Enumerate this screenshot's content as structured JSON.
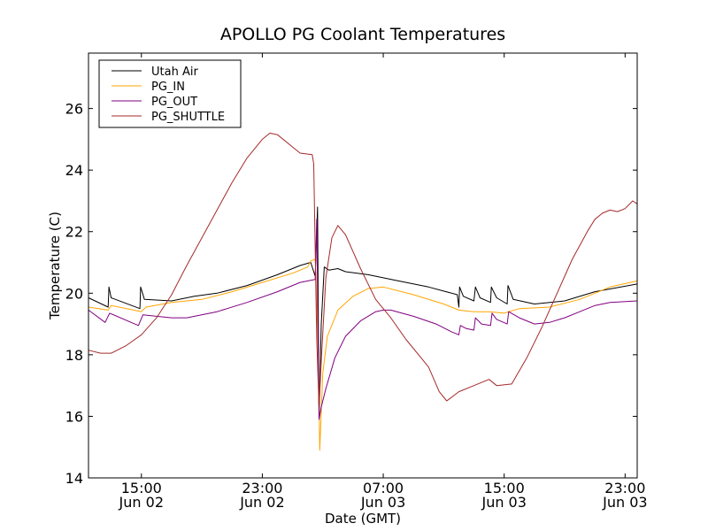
{
  "chart_data": {
    "type": "line",
    "title": "APOLLO PG Coolant Temperatures",
    "xlabel": "Date (GMT)",
    "ylabel": "Temperature (C)",
    "xlim": [
      11.5,
      47.8
    ],
    "ylim": [
      14,
      27.8
    ],
    "grid": false,
    "legend_position": "top-left",
    "x_unit": "hours since 00:00 Jun 02",
    "x_ticks": [
      {
        "x": 15,
        "line1": "15:00",
        "line2": "Jun 02"
      },
      {
        "x": 23,
        "line1": "23:00",
        "line2": "Jun 02"
      },
      {
        "x": 31,
        "line1": "07:00",
        "line2": "Jun 03"
      },
      {
        "x": 39,
        "line1": "15:00",
        "line2": "Jun 03"
      },
      {
        "x": 47,
        "line1": "23:00",
        "line2": "Jun 03"
      }
    ],
    "y_ticks": [
      14,
      16,
      18,
      20,
      22,
      24,
      26
    ],
    "series": [
      {
        "name": "Utah Air",
        "color": "#000000",
        "points": [
          [
            11.5,
            19.85
          ],
          [
            12.8,
            19.55
          ],
          [
            12.85,
            20.2
          ],
          [
            13.0,
            19.85
          ],
          [
            14.9,
            19.5
          ],
          [
            14.95,
            20.2
          ],
          [
            15.2,
            19.8
          ],
          [
            17.0,
            19.75
          ],
          [
            18.5,
            19.9
          ],
          [
            20,
            20.0
          ],
          [
            22,
            20.25
          ],
          [
            24,
            20.6
          ],
          [
            25.5,
            20.9
          ],
          [
            26.2,
            21.0
          ],
          [
            26.5,
            20.55
          ],
          [
            26.65,
            22.8
          ],
          [
            26.75,
            15.9
          ],
          [
            26.9,
            19.0
          ],
          [
            27.1,
            20.85
          ],
          [
            27.4,
            20.75
          ],
          [
            28,
            20.8
          ],
          [
            28.5,
            20.7
          ],
          [
            30,
            20.6
          ],
          [
            32,
            20.4
          ],
          [
            34,
            20.2
          ],
          [
            35.9,
            19.95
          ],
          [
            36.0,
            19.55
          ],
          [
            36.05,
            20.2
          ],
          [
            36.3,
            19.9
          ],
          [
            37.0,
            19.75
          ],
          [
            37.1,
            20.2
          ],
          [
            37.4,
            19.85
          ],
          [
            38.1,
            19.7
          ],
          [
            38.15,
            20.2
          ],
          [
            38.5,
            19.85
          ],
          [
            39.2,
            19.65
          ],
          [
            39.25,
            20.25
          ],
          [
            39.6,
            19.8
          ],
          [
            41,
            19.65
          ],
          [
            43,
            19.75
          ],
          [
            45,
            20.05
          ],
          [
            47.8,
            20.3
          ]
        ]
      },
      {
        "name": "PG_IN",
        "color": "#ffa500",
        "points": [
          [
            11.5,
            19.55
          ],
          [
            12.8,
            19.45
          ],
          [
            13.0,
            19.6
          ],
          [
            14.5,
            19.45
          ],
          [
            15.0,
            19.4
          ],
          [
            15.3,
            19.55
          ],
          [
            17.0,
            19.7
          ],
          [
            19,
            19.8
          ],
          [
            21,
            20.05
          ],
          [
            23,
            20.35
          ],
          [
            25,
            20.65
          ],
          [
            26.0,
            20.85
          ],
          [
            26.2,
            21.05
          ],
          [
            26.5,
            21.1
          ],
          [
            26.55,
            20.5
          ],
          [
            26.7,
            18.0
          ],
          [
            26.8,
            14.9
          ],
          [
            27.0,
            17.4
          ],
          [
            27.3,
            18.6
          ],
          [
            28.0,
            19.45
          ],
          [
            29,
            19.9
          ],
          [
            30,
            20.15
          ],
          [
            31,
            20.2
          ],
          [
            33,
            19.95
          ],
          [
            35,
            19.65
          ],
          [
            36,
            19.45
          ],
          [
            37,
            19.4
          ],
          [
            38,
            19.4
          ],
          [
            39,
            19.35
          ],
          [
            40,
            19.5
          ],
          [
            42,
            19.55
          ],
          [
            44,
            19.8
          ],
          [
            46,
            20.2
          ],
          [
            47.8,
            20.4
          ]
        ]
      },
      {
        "name": "PG_OUT",
        "color": "#800080",
        "points": [
          [
            11.5,
            19.45
          ],
          [
            12.6,
            19.05
          ],
          [
            12.9,
            19.35
          ],
          [
            14.8,
            18.95
          ],
          [
            15.1,
            19.3
          ],
          [
            16,
            19.25
          ],
          [
            17,
            19.2
          ],
          [
            18,
            19.2
          ],
          [
            20,
            19.4
          ],
          [
            22,
            19.7
          ],
          [
            24,
            20.05
          ],
          [
            25.5,
            20.35
          ],
          [
            26.5,
            20.45
          ],
          [
            26.6,
            22.4
          ],
          [
            26.75,
            15.9
          ],
          [
            26.9,
            16.3
          ],
          [
            27.2,
            16.9
          ],
          [
            27.8,
            17.9
          ],
          [
            28.5,
            18.6
          ],
          [
            29.5,
            19.1
          ],
          [
            30.5,
            19.4
          ],
          [
            31,
            19.45
          ],
          [
            31.5,
            19.45
          ],
          [
            33,
            19.25
          ],
          [
            34.5,
            19.0
          ],
          [
            35.5,
            18.75
          ],
          [
            36.0,
            18.65
          ],
          [
            36.1,
            18.95
          ],
          [
            36.5,
            18.85
          ],
          [
            37.0,
            18.8
          ],
          [
            37.1,
            19.2
          ],
          [
            37.5,
            19.0
          ],
          [
            38.1,
            18.95
          ],
          [
            38.2,
            19.35
          ],
          [
            38.5,
            19.15
          ],
          [
            39.2,
            19.0
          ],
          [
            39.3,
            19.4
          ],
          [
            40,
            19.2
          ],
          [
            41,
            19.0
          ],
          [
            42,
            19.05
          ],
          [
            43,
            19.2
          ],
          [
            44,
            19.4
          ],
          [
            45,
            19.6
          ],
          [
            46,
            19.7
          ],
          [
            47.8,
            19.75
          ]
        ]
      },
      {
        "name": "PG_SHUTTLE",
        "color": "#a52a2a",
        "points": [
          [
            11.5,
            18.15
          ],
          [
            12.3,
            18.05
          ],
          [
            13,
            18.05
          ],
          [
            14,
            18.3
          ],
          [
            15,
            18.65
          ],
          [
            16,
            19.2
          ],
          [
            17,
            19.95
          ],
          [
            18,
            20.9
          ],
          [
            19,
            21.8
          ],
          [
            20,
            22.7
          ],
          [
            21,
            23.6
          ],
          [
            22,
            24.4
          ],
          [
            23,
            25.0
          ],
          [
            23.5,
            25.2
          ],
          [
            24,
            25.15
          ],
          [
            25,
            24.75
          ],
          [
            25.5,
            24.55
          ],
          [
            26.3,
            24.5
          ],
          [
            26.4,
            24.2
          ],
          [
            26.6,
            18.5
          ],
          [
            26.75,
            16.3
          ],
          [
            26.9,
            17.8
          ],
          [
            27.2,
            20.5
          ],
          [
            27.6,
            21.8
          ],
          [
            28,
            22.2
          ],
          [
            28.5,
            21.9
          ],
          [
            29.5,
            20.8
          ],
          [
            30.5,
            19.8
          ],
          [
            31.5,
            19.2
          ],
          [
            32.5,
            18.5
          ],
          [
            33.5,
            17.9
          ],
          [
            34,
            17.6
          ],
          [
            34.7,
            16.8
          ],
          [
            35.2,
            16.5
          ],
          [
            36,
            16.8
          ],
          [
            37,
            17.0
          ],
          [
            38,
            17.2
          ],
          [
            38.5,
            17.0
          ],
          [
            39.5,
            17.05
          ],
          [
            40.5,
            17.9
          ],
          [
            41.5,
            18.9
          ],
          [
            42.5,
            20.0
          ],
          [
            43.5,
            21.1
          ],
          [
            44.5,
            22.0
          ],
          [
            45,
            22.4
          ],
          [
            45.5,
            22.6
          ],
          [
            46,
            22.7
          ],
          [
            46.5,
            22.65
          ],
          [
            47,
            22.75
          ],
          [
            47.5,
            23.0
          ],
          [
            47.8,
            22.9
          ]
        ]
      }
    ]
  }
}
